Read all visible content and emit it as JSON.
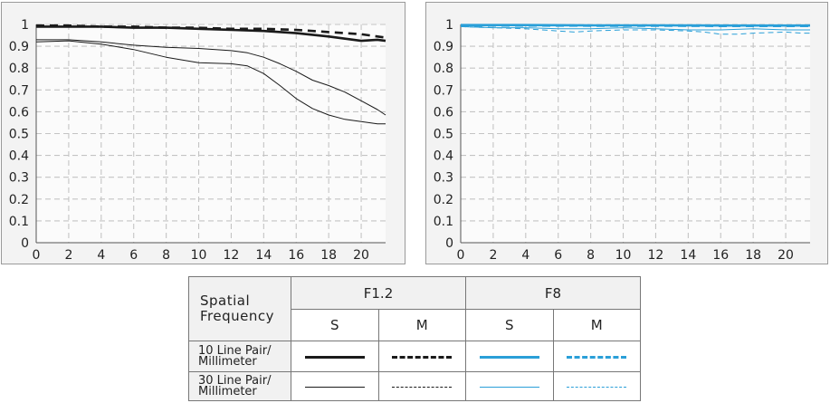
{
  "colors": {
    "f12": "#1a1a1a",
    "f8": "#2a9fd8"
  },
  "chart_data": [
    {
      "type": "line",
      "title": "F1.2",
      "xlim": [
        0,
        21.5
      ],
      "ylim": [
        0,
        1
      ],
      "x_ticks": [
        0,
        2,
        4,
        6,
        8,
        10,
        12,
        14,
        16,
        18,
        20
      ],
      "y_ticks": [
        0,
        0.1,
        0.2,
        0.3,
        0.4,
        0.5,
        0.6,
        0.7,
        0.8,
        0.9,
        1
      ],
      "y_tick_labels": [
        "0",
        "0.1",
        "0.2",
        "0.3",
        "0.4",
        "0.5",
        "0.6",
        "0.7",
        "0.8",
        "0.9",
        "1"
      ],
      "grid": true,
      "series": [
        {
          "name": "10 Line Pair/Millimeter S",
          "style": "solid-thick",
          "x": [
            0,
            2,
            4,
            6,
            8,
            10,
            12,
            14,
            16,
            18,
            19,
            20,
            21,
            21.5
          ],
          "y": [
            0.99,
            0.99,
            0.99,
            0.985,
            0.985,
            0.98,
            0.975,
            0.97,
            0.96,
            0.945,
            0.935,
            0.925,
            0.93,
            0.925
          ]
        },
        {
          "name": "10 Line Pair/Millimeter M",
          "style": "dashed-thick",
          "x": [
            0,
            2,
            4,
            6,
            8,
            10,
            12,
            14,
            16,
            18,
            20,
            21,
            21.5
          ],
          "y": [
            0.995,
            0.995,
            0.99,
            0.99,
            0.985,
            0.985,
            0.98,
            0.98,
            0.975,
            0.965,
            0.955,
            0.945,
            0.94
          ]
        },
        {
          "name": "30 Line Pair/Millimeter S",
          "style": "solid-thin",
          "x": [
            0,
            2,
            4,
            6,
            8,
            10,
            12,
            13,
            14,
            15,
            16,
            17,
            18,
            19,
            20,
            21,
            21.5
          ],
          "y": [
            0.92,
            0.925,
            0.91,
            0.885,
            0.85,
            0.825,
            0.82,
            0.81,
            0.775,
            0.72,
            0.66,
            0.615,
            0.585,
            0.565,
            0.555,
            0.545,
            0.545
          ]
        },
        {
          "name": "30 Line Pair/Millimeter M",
          "style": "solid-thin",
          "x": [
            0,
            2,
            4,
            6,
            8,
            10,
            12,
            13,
            14,
            15,
            16,
            17,
            18,
            19,
            20,
            21,
            21.5
          ],
          "y": [
            0.93,
            0.93,
            0.92,
            0.905,
            0.895,
            0.89,
            0.88,
            0.87,
            0.85,
            0.82,
            0.785,
            0.745,
            0.72,
            0.69,
            0.65,
            0.61,
            0.585
          ]
        }
      ]
    },
    {
      "type": "line",
      "title": "F8",
      "xlim": [
        0,
        21.5
      ],
      "ylim": [
        0,
        1
      ],
      "x_ticks": [
        0,
        2,
        4,
        6,
        8,
        10,
        12,
        14,
        16,
        18,
        20
      ],
      "y_ticks": [
        0,
        0.1,
        0.2,
        0.3,
        0.4,
        0.5,
        0.6,
        0.7,
        0.8,
        0.9,
        1
      ],
      "y_tick_labels": [
        "0",
        "0.1",
        "0.2",
        "0.3",
        "0.4",
        "0.5",
        "0.6",
        "0.7",
        "0.8",
        "0.9",
        "1"
      ],
      "grid": true,
      "series": [
        {
          "name": "10 Line Pair/Millimeter S",
          "style": "solid-thick",
          "x": [
            0,
            4,
            8,
            12,
            16,
            20,
            21.5
          ],
          "y": [
            0.997,
            0.997,
            0.996,
            0.996,
            0.995,
            0.995,
            0.995
          ]
        },
        {
          "name": "10 Line Pair/Millimeter M",
          "style": "dashed-thick",
          "x": [
            0,
            4,
            8,
            12,
            16,
            20,
            21.5
          ],
          "y": [
            0.995,
            0.995,
            0.994,
            0.994,
            0.993,
            0.993,
            0.993
          ]
        },
        {
          "name": "30 Line Pair/Millimeter S",
          "style": "solid-thin",
          "x": [
            0,
            2,
            4,
            6,
            8,
            10,
            12,
            14,
            16,
            18,
            20,
            21.5
          ],
          "y": [
            0.99,
            0.985,
            0.985,
            0.98,
            0.98,
            0.985,
            0.98,
            0.975,
            0.975,
            0.98,
            0.975,
            0.975
          ]
        },
        {
          "name": "30 Line Pair/Millimeter M",
          "style": "dashed-thin",
          "x": [
            0,
            2,
            4,
            6,
            7,
            8,
            10,
            12,
            14,
            15,
            16,
            17,
            18,
            20,
            21,
            21.5
          ],
          "y": [
            0.99,
            0.985,
            0.98,
            0.97,
            0.965,
            0.97,
            0.975,
            0.975,
            0.97,
            0.965,
            0.955,
            0.955,
            0.96,
            0.965,
            0.96,
            0.96
          ]
        }
      ]
    }
  ],
  "legend": {
    "spatial_frequency_line1": "Spatial",
    "spatial_frequency_line2": "Frequency",
    "aperture_1": "F1.2",
    "aperture_2": "F8",
    "col_s_1": "S",
    "col_m_1": "M",
    "col_s_2": "S",
    "col_m_2": "M",
    "row_10_line1": "10 Line Pair/",
    "row_10_line2": "Millimeter",
    "row_30_line1": "30 Line Pair/",
    "row_30_line2": "Millimeter"
  }
}
